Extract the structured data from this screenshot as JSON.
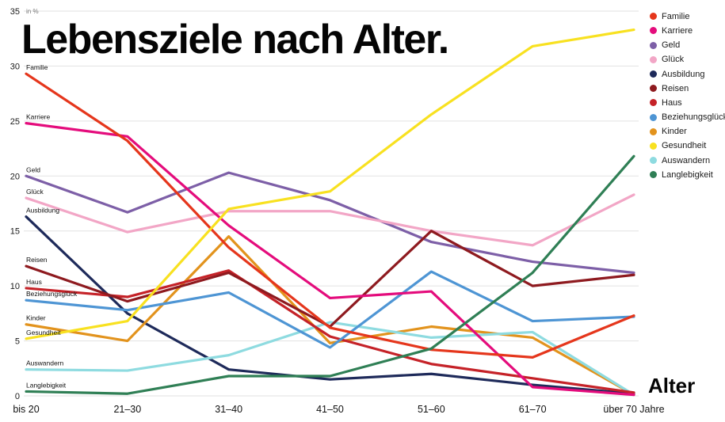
{
  "chart_data": {
    "type": "line",
    "title": "Lebensziele nach Alter.",
    "unit_label": "in %",
    "xlabel": "Alter",
    "ylim": [
      0,
      35
    ],
    "y_ticks": [
      0,
      5,
      10,
      15,
      20,
      25,
      30,
      35
    ],
    "grid": "horizontal",
    "legend_position": "top-right",
    "categories": [
      "bis 20",
      "21–30",
      "31–40",
      "41–50",
      "51–60",
      "61–70",
      "über 70 Jahre"
    ],
    "series": [
      {
        "name": "Familie",
        "color": "#e5361c",
        "values": [
          29.3,
          23.2,
          13.5,
          6.2,
          4.2,
          3.5,
          7.3
        ]
      },
      {
        "name": "Karriere",
        "color": "#e40c7c",
        "values": [
          24.8,
          23.6,
          15.5,
          8.9,
          9.5,
          0.8,
          0.1
        ]
      },
      {
        "name": "Geld",
        "color": "#7d5fa7",
        "values": [
          20.0,
          16.7,
          20.3,
          17.8,
          14.0,
          12.2,
          11.2
        ]
      },
      {
        "name": "Glück",
        "color": "#f2a6c6",
        "values": [
          18.0,
          14.9,
          16.8,
          16.8,
          15.0,
          13.7,
          18.3
        ]
      },
      {
        "name": "Ausbildung",
        "color": "#1e2a5a",
        "values": [
          16.3,
          7.5,
          2.4,
          1.5,
          2.0,
          1.0,
          0.2
        ]
      },
      {
        "name": "Reisen",
        "color": "#8e1a1f",
        "values": [
          11.8,
          8.6,
          11.2,
          6.3,
          15.0,
          10.0,
          11.0
        ]
      },
      {
        "name": "Haus",
        "color": "#c52228",
        "values": [
          9.8,
          9.0,
          11.4,
          5.4,
          2.9,
          1.6,
          0.3
        ]
      },
      {
        "name": "Beziehungsglück",
        "color": "#4e95d4",
        "values": [
          8.7,
          7.8,
          9.4,
          4.4,
          11.3,
          6.8,
          7.2
        ]
      },
      {
        "name": "Kinder",
        "color": "#e2931d",
        "values": [
          6.5,
          5.0,
          14.5,
          4.8,
          6.3,
          5.3,
          0.1
        ]
      },
      {
        "name": "Gesundheit",
        "color": "#f8e120",
        "values": [
          5.2,
          6.8,
          17.0,
          18.6,
          25.6,
          31.8,
          33.3
        ]
      },
      {
        "name": "Auswandern",
        "color": "#8edbe0",
        "values": [
          2.4,
          2.3,
          3.7,
          6.7,
          5.3,
          5.8,
          0.1
        ]
      },
      {
        "name": "Langlebigkeit",
        "color": "#2f7f55",
        "values": [
          0.4,
          0.2,
          1.8,
          1.8,
          4.3,
          11.2,
          21.8
        ]
      }
    ]
  }
}
